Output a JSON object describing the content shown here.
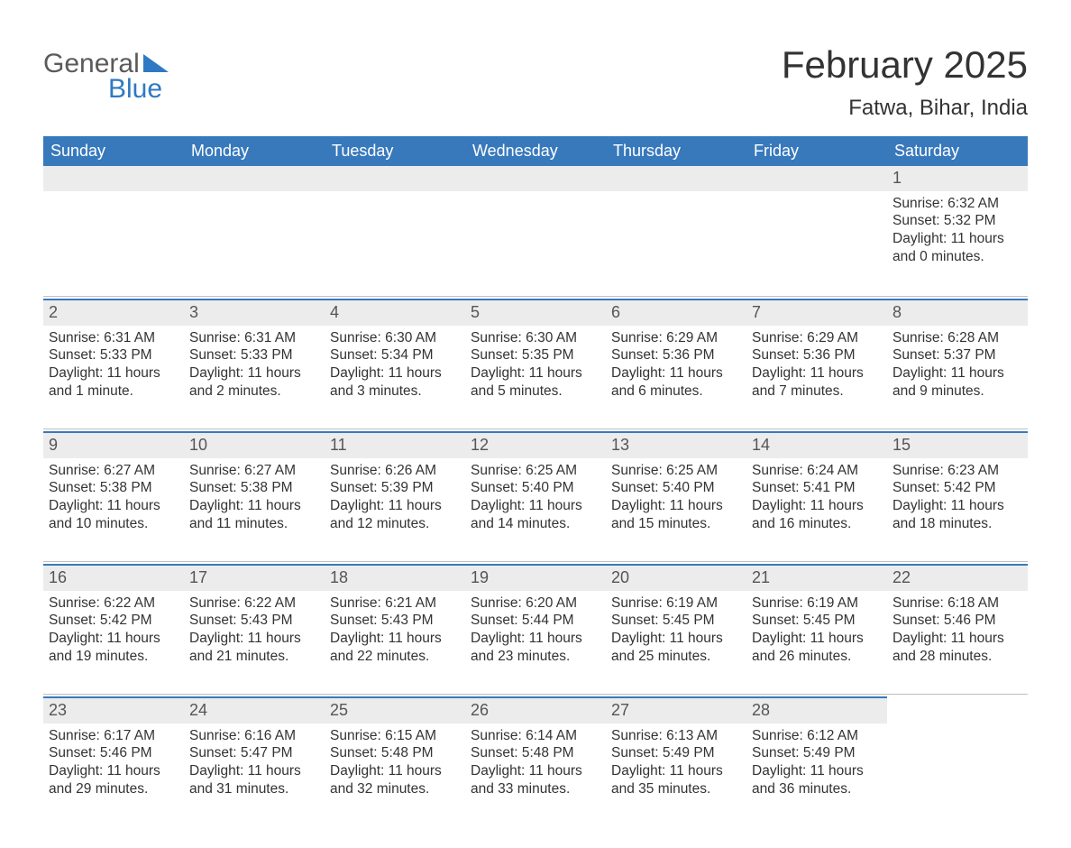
{
  "logo": {
    "general": "General",
    "blue": "Blue"
  },
  "title": "February 2025",
  "location": "Fatwa, Bihar, India",
  "header_bg": "#3879bc",
  "header_text_color": "#ffffff",
  "daynum_bg": "#ececec",
  "rule_color": "#bfbfbf",
  "text_color": "#333333",
  "body_fontsize": 15.5,
  "title_fontsize": 42,
  "location_fontsize": 24,
  "weekday_fontsize": 18,
  "weekdays": [
    "Sunday",
    "Monday",
    "Tuesday",
    "Wednesday",
    "Thursday",
    "Friday",
    "Saturday"
  ],
  "weeks": [
    [
      null,
      null,
      null,
      null,
      null,
      null,
      {
        "n": "1",
        "sunrise": "Sunrise: 6:32 AM",
        "sunset": "Sunset: 5:32 PM",
        "daylight": "Daylight: 11 hours and 0 minutes."
      }
    ],
    [
      {
        "n": "2",
        "sunrise": "Sunrise: 6:31 AM",
        "sunset": "Sunset: 5:33 PM",
        "daylight": "Daylight: 11 hours and 1 minute."
      },
      {
        "n": "3",
        "sunrise": "Sunrise: 6:31 AM",
        "sunset": "Sunset: 5:33 PM",
        "daylight": "Daylight: 11 hours and 2 minutes."
      },
      {
        "n": "4",
        "sunrise": "Sunrise: 6:30 AM",
        "sunset": "Sunset: 5:34 PM",
        "daylight": "Daylight: 11 hours and 3 minutes."
      },
      {
        "n": "5",
        "sunrise": "Sunrise: 6:30 AM",
        "sunset": "Sunset: 5:35 PM",
        "daylight": "Daylight: 11 hours and 5 minutes."
      },
      {
        "n": "6",
        "sunrise": "Sunrise: 6:29 AM",
        "sunset": "Sunset: 5:36 PM",
        "daylight": "Daylight: 11 hours and 6 minutes."
      },
      {
        "n": "7",
        "sunrise": "Sunrise: 6:29 AM",
        "sunset": "Sunset: 5:36 PM",
        "daylight": "Daylight: 11 hours and 7 minutes."
      },
      {
        "n": "8",
        "sunrise": "Sunrise: 6:28 AM",
        "sunset": "Sunset: 5:37 PM",
        "daylight": "Daylight: 11 hours and 9 minutes."
      }
    ],
    [
      {
        "n": "9",
        "sunrise": "Sunrise: 6:27 AM",
        "sunset": "Sunset: 5:38 PM",
        "daylight": "Daylight: 11 hours and 10 minutes."
      },
      {
        "n": "10",
        "sunrise": "Sunrise: 6:27 AM",
        "sunset": "Sunset: 5:38 PM",
        "daylight": "Daylight: 11 hours and 11 minutes."
      },
      {
        "n": "11",
        "sunrise": "Sunrise: 6:26 AM",
        "sunset": "Sunset: 5:39 PM",
        "daylight": "Daylight: 11 hours and 12 minutes."
      },
      {
        "n": "12",
        "sunrise": "Sunrise: 6:25 AM",
        "sunset": "Sunset: 5:40 PM",
        "daylight": "Daylight: 11 hours and 14 minutes."
      },
      {
        "n": "13",
        "sunrise": "Sunrise: 6:25 AM",
        "sunset": "Sunset: 5:40 PM",
        "daylight": "Daylight: 11 hours and 15 minutes."
      },
      {
        "n": "14",
        "sunrise": "Sunrise: 6:24 AM",
        "sunset": "Sunset: 5:41 PM",
        "daylight": "Daylight: 11 hours and 16 minutes."
      },
      {
        "n": "15",
        "sunrise": "Sunrise: 6:23 AM",
        "sunset": "Sunset: 5:42 PM",
        "daylight": "Daylight: 11 hours and 18 minutes."
      }
    ],
    [
      {
        "n": "16",
        "sunrise": "Sunrise: 6:22 AM",
        "sunset": "Sunset: 5:42 PM",
        "daylight": "Daylight: 11 hours and 19 minutes."
      },
      {
        "n": "17",
        "sunrise": "Sunrise: 6:22 AM",
        "sunset": "Sunset: 5:43 PM",
        "daylight": "Daylight: 11 hours and 21 minutes."
      },
      {
        "n": "18",
        "sunrise": "Sunrise: 6:21 AM",
        "sunset": "Sunset: 5:43 PM",
        "daylight": "Daylight: 11 hours and 22 minutes."
      },
      {
        "n": "19",
        "sunrise": "Sunrise: 6:20 AM",
        "sunset": "Sunset: 5:44 PM",
        "daylight": "Daylight: 11 hours and 23 minutes."
      },
      {
        "n": "20",
        "sunrise": "Sunrise: 6:19 AM",
        "sunset": "Sunset: 5:45 PM",
        "daylight": "Daylight: 11 hours and 25 minutes."
      },
      {
        "n": "21",
        "sunrise": "Sunrise: 6:19 AM",
        "sunset": "Sunset: 5:45 PM",
        "daylight": "Daylight: 11 hours and 26 minutes."
      },
      {
        "n": "22",
        "sunrise": "Sunrise: 6:18 AM",
        "sunset": "Sunset: 5:46 PM",
        "daylight": "Daylight: 11 hours and 28 minutes."
      }
    ],
    [
      {
        "n": "23",
        "sunrise": "Sunrise: 6:17 AM",
        "sunset": "Sunset: 5:46 PM",
        "daylight": "Daylight: 11 hours and 29 minutes."
      },
      {
        "n": "24",
        "sunrise": "Sunrise: 6:16 AM",
        "sunset": "Sunset: 5:47 PM",
        "daylight": "Daylight: 11 hours and 31 minutes."
      },
      {
        "n": "25",
        "sunrise": "Sunrise: 6:15 AM",
        "sunset": "Sunset: 5:48 PM",
        "daylight": "Daylight: 11 hours and 32 minutes."
      },
      {
        "n": "26",
        "sunrise": "Sunrise: 6:14 AM",
        "sunset": "Sunset: 5:48 PM",
        "daylight": "Daylight: 11 hours and 33 minutes."
      },
      {
        "n": "27",
        "sunrise": "Sunrise: 6:13 AM",
        "sunset": "Sunset: 5:49 PM",
        "daylight": "Daylight: 11 hours and 35 minutes."
      },
      {
        "n": "28",
        "sunrise": "Sunrise: 6:12 AM",
        "sunset": "Sunset: 5:49 PM",
        "daylight": "Daylight: 11 hours and 36 minutes."
      },
      null
    ]
  ]
}
